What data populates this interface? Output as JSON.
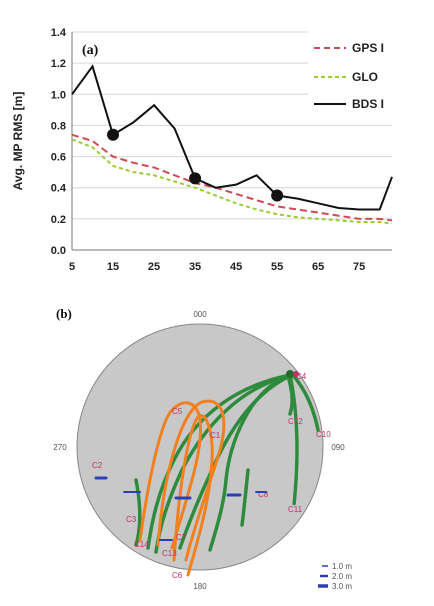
{
  "chart_data": [
    {
      "type": "line",
      "panel_label": "(a)",
      "ylabel": "Avg. MP RMS [m]",
      "ylim": [
        0.0,
        1.4
      ],
      "y_ticks": [
        "0.0",
        "0.2",
        "0.4",
        "0.6",
        "0.8",
        "1.0",
        "1.2",
        "1.4"
      ],
      "xlim": [
        5,
        83
      ],
      "x_ticks": [
        "5",
        "15",
        "25",
        "35",
        "45",
        "55",
        "65",
        "75"
      ],
      "legend_position": "top-right",
      "series": [
        {
          "name": "GPS I",
          "style": "dashed",
          "color": "#d04a55",
          "points": [
            [
              5,
              0.74
            ],
            [
              10,
              0.7
            ],
            [
              15,
              0.6
            ],
            [
              20,
              0.56
            ],
            [
              25,
              0.53
            ],
            [
              30,
              0.48
            ],
            [
              35,
              0.43
            ],
            [
              40,
              0.4
            ],
            [
              45,
              0.36
            ],
            [
              50,
              0.32
            ],
            [
              55,
              0.28
            ],
            [
              60,
              0.26
            ],
            [
              65,
              0.24
            ],
            [
              70,
              0.22
            ],
            [
              75,
              0.2
            ],
            [
              80,
              0.2
            ],
            [
              83,
              0.19
            ]
          ]
        },
        {
          "name": "GLO",
          "style": "dashed",
          "color": "#9acd32",
          "points": [
            [
              5,
              0.71
            ],
            [
              10,
              0.66
            ],
            [
              15,
              0.54
            ],
            [
              20,
              0.5
            ],
            [
              25,
              0.48
            ],
            [
              30,
              0.44
            ],
            [
              35,
              0.4
            ],
            [
              40,
              0.35
            ],
            [
              45,
              0.3
            ],
            [
              50,
              0.26
            ],
            [
              55,
              0.23
            ],
            [
              60,
              0.21
            ],
            [
              65,
              0.2
            ],
            [
              70,
              0.19
            ],
            [
              75,
              0.18
            ],
            [
              80,
              0.18
            ],
            [
              83,
              0.17
            ]
          ]
        },
        {
          "name": "BDS I",
          "style": "solid",
          "color": "#111111",
          "markers_at_x": [
            15,
            35,
            55
          ],
          "points": [
            [
              5,
              1.0
            ],
            [
              10,
              1.18
            ],
            [
              15,
              0.74
            ],
            [
              20,
              0.82
            ],
            [
              25,
              0.93
            ],
            [
              30,
              0.78
            ],
            [
              35,
              0.46
            ],
            [
              40,
              0.4
            ],
            [
              45,
              0.42
            ],
            [
              50,
              0.48
            ],
            [
              55,
              0.35
            ],
            [
              60,
              0.33
            ],
            [
              65,
              0.3
            ],
            [
              70,
              0.27
            ],
            [
              75,
              0.26
            ],
            [
              80,
              0.26
            ],
            [
              83,
              0.47
            ]
          ]
        }
      ]
    },
    {
      "type": "scatter",
      "panel_label": "(b)",
      "description": "polar sky plot",
      "direction_labels": {
        "north": "000",
        "east": "090",
        "south": "180",
        "west": "270"
      },
      "satellite_labels": [
        "C4",
        "C10",
        "C12",
        "C11",
        "C5",
        "C8",
        "C1",
        "C2",
        "C6",
        "C13",
        "C14",
        "C3",
        "C7"
      ],
      "size_legend": [
        "1.0 m",
        "2.0 m",
        "3.0 m"
      ]
    }
  ]
}
